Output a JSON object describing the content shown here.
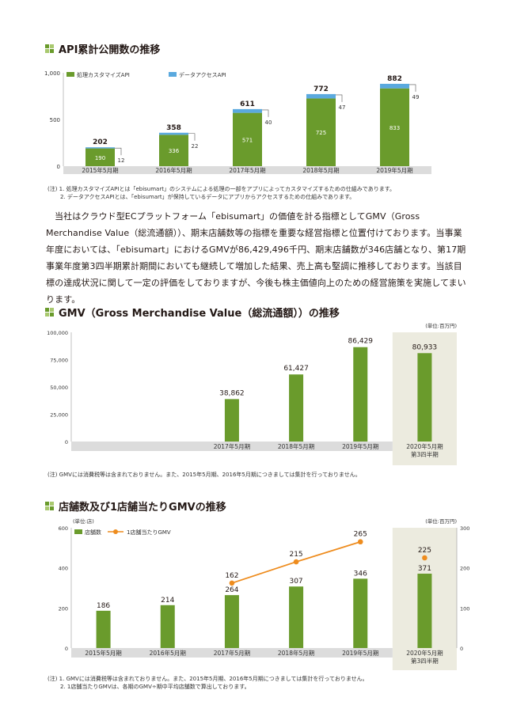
{
  "section1": {
    "title": "API累計公開数の推移",
    "notes": [
      "(注) 1. 処理カスタマイズAPIとは「ebisumart」のシステムによる処理の一部をアプリによってカスタマイズするための仕組みであります。",
      "2. データアクセスAPIとは、「ebisumart」が保持しているデータにアプリからアクセスするための仕組みであります。"
    ]
  },
  "paragraph": "当社はクラウド型ECプラットフォーム「ebisumart」の価値を計る指標としてGMV（Gross Merchandise Value（総流通額））、期末店舗数等の指標を重要な経営指標と位置付けております。当事業年度においては、「ebisumart」におけるGMVが86,429,496千円、期末店舗数が346店舗となり、第17期事業年度第3四半期累計期間においても継続して増加した結果、売上高も堅調に推移しております。当該目標の達成状況に関して一定の評価をしておりますが、今後も株主価値向上のための経営施策を実施してまいります。",
  "section2": {
    "title": "GMV（Gross Merchandise Value（総流通額））の推移",
    "notes": [
      "(注) GMVには消費税等は含まれておりません。また、2015年5月期、2016年5月期につきましては集計を行っておりません。"
    ]
  },
  "section3": {
    "title": "店舗数及び1店舗当たりGMVの推移",
    "notes": [
      "(注) 1. GMVには消費税等は含まれておりません。また、2015年5月期、2016年5月期につきましては集計を行っておりません。",
      "2. 1店舗当たりGMVは、各期のGMV÷期中平均店舗数で算出しております。"
    ]
  },
  "colors": {
    "green": "#6a9b2c",
    "blue": "#5aa9de",
    "orange": "#ee8c1e",
    "highlight": "#ecebdf",
    "axis_band": "#dcdcdc"
  },
  "chart_data": [
    {
      "type": "bar",
      "stacked": true,
      "categories": [
        "2015年5月期",
        "2016年5月期",
        "2017年5月期",
        "2018年5月期",
        "2019年5月期"
      ],
      "series": [
        {
          "name": "処理カスタマイズAPI",
          "values": [
            190,
            336,
            571,
            725,
            833
          ]
        },
        {
          "name": "データアクセスAPI",
          "values": [
            12,
            22,
            40,
            47,
            49
          ]
        }
      ],
      "totals": [
        202,
        358,
        611,
        772,
        882
      ],
      "yticks": [
        "1,000",
        "500",
        "0"
      ],
      "ylim": [
        0,
        1000
      ],
      "legend": "top-left"
    },
    {
      "type": "bar",
      "unit": "(単位:百万円)",
      "categories": [
        "2017年5月期",
        "2018年5月期",
        "2019年5月期",
        "2020年5月期 第3四半期"
      ],
      "values": [
        38862,
        61427,
        86429,
        80933
      ],
      "labels": [
        "38,862",
        "61,427",
        "86,429",
        "80,933"
      ],
      "yticks": [
        "100,000",
        "75,000",
        "50,000",
        "25,000",
        "0"
      ],
      "ylim": [
        0,
        100000
      ]
    },
    {
      "type": "bar",
      "unit_left": "(単位:店)",
      "unit_right": "(単位:百万円)",
      "categories": [
        "2015年5月期",
        "2016年5月期",
        "2017年5月期",
        "2018年5月期",
        "2019年5月期",
        "2020年5月期 第3四半期"
      ],
      "series": [
        {
          "name": "店舗数",
          "type": "bar",
          "values": [
            186,
            214,
            264,
            307,
            346,
            371
          ]
        },
        {
          "name": "1店舗当たりGMV",
          "type": "line",
          "axis": "right",
          "values": [
            null,
            null,
            162,
            215,
            265,
            225
          ]
        }
      ],
      "yticks_left": [
        "600",
        "400",
        "200",
        "0"
      ],
      "yticks_right": [
        "300",
        "200",
        "100",
        "0"
      ],
      "ylim_left": [
        0,
        600
      ],
      "ylim_right": [
        0,
        300
      ],
      "legend": "top-left"
    }
  ]
}
